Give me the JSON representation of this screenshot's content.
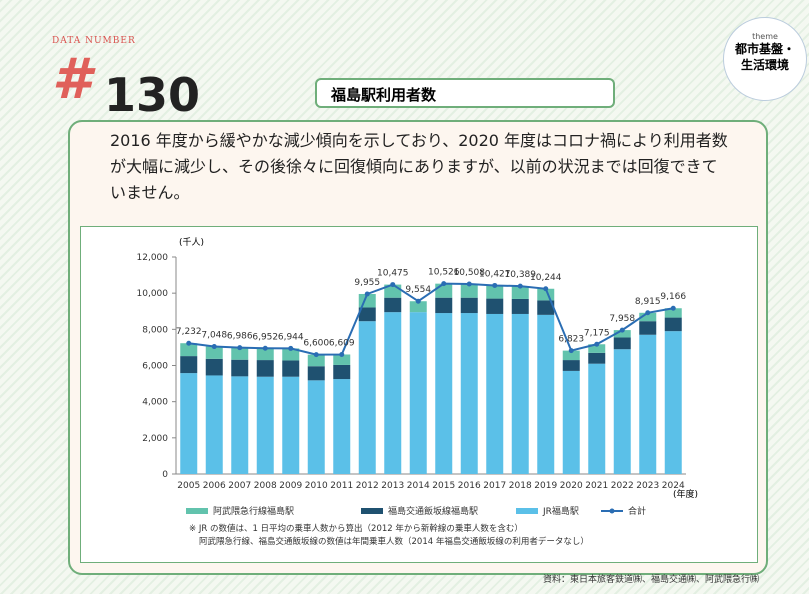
{
  "header": {
    "label": "DATA NUMBER",
    "hash": "#",
    "number": "130",
    "title": "福島駅利用者数",
    "theme_label": "theme",
    "theme": "都市基盤・\n生活環境"
  },
  "description": "2016 年度から緩やかな減少傾向を示しており、2020 年度はコロナ禍により利用者数が大幅に減少し、その後徐々に回復傾向にありますが、以前の状況までは回復できていません。",
  "chart_data": {
    "type": "bar",
    "stacked": true,
    "y_unit": "(千人)",
    "x_unit": "(年度)",
    "categories": [
      "2005",
      "2006",
      "2007",
      "2008",
      "2009",
      "2010",
      "2011",
      "2012",
      "2013",
      "2014",
      "2015",
      "2016",
      "2017",
      "2018",
      "2019",
      "2020",
      "2021",
      "2022",
      "2023",
      "2024"
    ],
    "series": [
      {
        "name": "阿武隈急行線福島駅",
        "color": "#62c3ad",
        "values": [
          712,
          678,
          666,
          652,
          664,
          640,
          579,
          745,
          725,
          604,
          776,
          758,
          727,
          709,
          644,
          523,
          475,
          408,
          465,
          516
        ]
      },
      {
        "name": "福島交通飯坂線福島駅",
        "color": "#1f5170",
        "values": [
          940,
          920,
          920,
          920,
          900,
          780,
          780,
          760,
          800,
          null,
          850,
          850,
          850,
          830,
          800,
          600,
          600,
          650,
          750,
          750
        ]
      },
      {
        "name": "JR福島駅",
        "color": "#5bc0e8",
        "values": [
          5580,
          5450,
          5400,
          5380,
          5380,
          5180,
          5250,
          8450,
          8950,
          8950,
          8900,
          8900,
          8850,
          8850,
          8800,
          5700,
          6100,
          6900,
          7700,
          7900
        ]
      },
      {
        "name": "合計",
        "type": "line",
        "color": "#2a6db3",
        "values": [
          7232,
          7048,
          6986,
          6952,
          6944,
          6600,
          6609,
          9955,
          10475,
          9554,
          10526,
          10508,
          10427,
          10389,
          10244,
          6823,
          7175,
          7958,
          8915,
          9166
        ],
        "value_labels": [
          "7,232",
          "7,048",
          "6,986",
          "6,952",
          "6,944",
          "6,600",
          "6,609",
          "9,955",
          "10,475",
          "9,554",
          "10,526",
          "10,508",
          "10,427",
          "10,389",
          "10,244",
          "6,823",
          "7,175",
          "7,958",
          "8,915",
          "9,166"
        ]
      }
    ],
    "ylim": [
      0,
      12000
    ],
    "yticks": [
      0,
      {
        "value": 2000,
        "label": "2,000"
      },
      {
        "value": 4000,
        "label": "4,000"
      },
      {
        "value": 6000,
        "label": "6,000"
      },
      {
        "value": 8000,
        "label": "8,000"
      },
      {
        "value": 10000,
        "label": "10,000"
      },
      {
        "value": 12000,
        "label": "12,000"
      }
    ],
    "grid": false,
    "notes": [
      "※ JR の数値は、1 日平均の乗車人数から算出（2012 年から新幹線の乗車人数を含む）",
      "阿武隈急行線、福島交通飯坂線の数値は年間乗車人数（2014 年福島交通飯坂線の利用者データなし）"
    ]
  },
  "source": "資料：東日本旅客鉄道㈱、福島交通㈱、阿武隈急行㈱"
}
